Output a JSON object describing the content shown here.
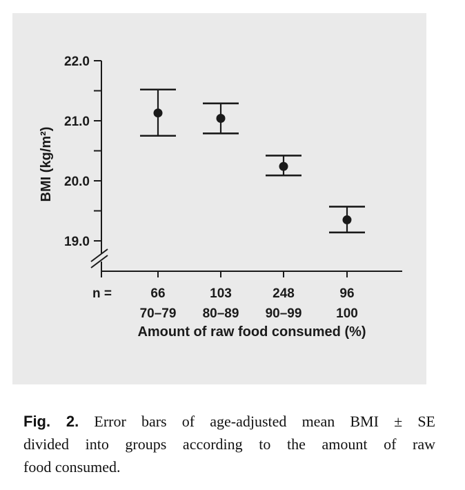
{
  "figure": {
    "caption": {
      "label": "Fig. 2.",
      "lines": [
        "Error bars of age-adjusted mean BMI ± SE",
        "divided into groups according to the amount of raw",
        "food consumed."
      ]
    }
  },
  "chart_data": {
    "type": "scatter",
    "subtype": "error-bar-plot",
    "title": "",
    "xlabel": "Amount of raw food consumed (%)",
    "ylabel": "BMI (kg/m²)",
    "n_prefix": "n =",
    "categories": [
      "70–79",
      "80–89",
      "90–99",
      "100"
    ],
    "n_values": [
      "66",
      "103",
      "248",
      "96"
    ],
    "series": [
      {
        "name": "Age-adjusted mean BMI ± SE",
        "means": [
          21.13,
          21.04,
          20.24,
          19.35
        ],
        "upper": [
          21.52,
          21.29,
          20.42,
          19.57
        ],
        "lower": [
          20.75,
          20.79,
          20.09,
          19.14
        ]
      }
    ],
    "y_axis": {
      "ticks": [
        {
          "value": 22.0,
          "label": "22.0"
        },
        {
          "value": 21.0,
          "label": "21.0"
        },
        {
          "value": 20.0,
          "label": "20.0"
        },
        {
          "value": 19.0,
          "label": "19.0"
        }
      ],
      "minor_ticks": [
        21.5,
        20.5,
        19.5
      ],
      "ylim_shown": [
        19.0,
        22.0
      ],
      "axis_break": true
    },
    "legend": "none",
    "grid": false,
    "colors": {
      "marks": "#1a1a1a",
      "panel_bg": "#eaeaea",
      "page_bg": "#ffffff"
    }
  }
}
